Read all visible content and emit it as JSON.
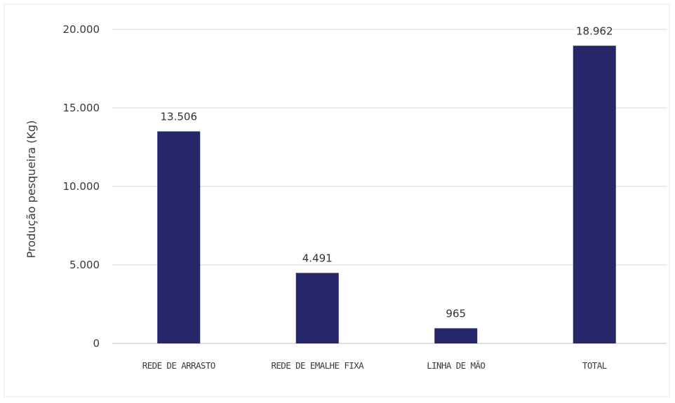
{
  "chart_data": {
    "type": "bar",
    "categories": [
      "REDE DE ARRASTO",
      "REDE DE EMALHE FIXA",
      "LINHA DE MÃO",
      "TOTAL"
    ],
    "values": [
      13506,
      4491,
      965,
      18962
    ],
    "value_labels": [
      "13.506",
      "4.491",
      "965",
      "18.962"
    ],
    "ylabel": "Produção pesqueira (Kg)",
    "ylim": [
      0,
      20000
    ],
    "yticks": [
      0,
      5000,
      10000,
      15000,
      20000
    ],
    "ytick_labels": [
      "0",
      "5.000",
      "10.000",
      "15.000",
      "20.000"
    ],
    "grid": true,
    "legend": "none",
    "bar_color": "#26266b"
  }
}
